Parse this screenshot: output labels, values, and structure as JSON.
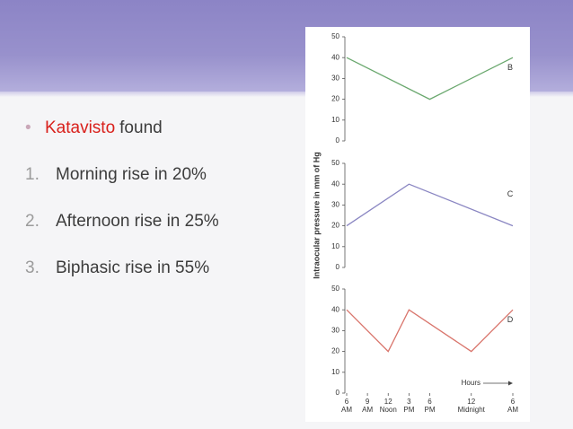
{
  "slide": {
    "bullet": {
      "marker": "•",
      "highlight": "Katavisto",
      "text": "found"
    },
    "items": [
      {
        "number": "1.",
        "text": "Morning rise in 20%"
      },
      {
        "number": "2.",
        "text": "Afternoon rise in 25%"
      },
      {
        "number": "3.",
        "text": "Biphasic rise in 55%"
      }
    ]
  },
  "chart_data": [
    {
      "type": "line",
      "label": "B",
      "color": "#6aa86e",
      "x": [
        6,
        18,
        30
      ],
      "values": [
        40,
        20,
        40
      ],
      "ylim": [
        0,
        50
      ],
      "yticks": [
        0,
        10,
        20,
        30,
        40,
        50
      ],
      "xlim": [
        6,
        30
      ]
    },
    {
      "type": "line",
      "label": "C",
      "color": "#8a86c2",
      "x": [
        6,
        15,
        30
      ],
      "values": [
        20,
        40,
        20
      ],
      "ylim": [
        0,
        50
      ],
      "yticks": [
        0,
        10,
        20,
        30,
        40,
        50
      ],
      "xlim": [
        6,
        30
      ],
      "ylabel": "Intraocular pressure in mm of Hg"
    },
    {
      "type": "line",
      "label": "D",
      "color": "#d9756c",
      "x": [
        6,
        12,
        15,
        24,
        30
      ],
      "values": [
        40,
        20,
        40,
        20,
        40
      ],
      "ylim": [
        0,
        50
      ],
      "yticks": [
        0,
        10,
        20,
        30,
        40,
        50
      ],
      "xlim": [
        6,
        30
      ],
      "xlabel": "Hours",
      "xticks": [
        {
          "value": 6,
          "label": [
            "6",
            "AM"
          ]
        },
        {
          "value": 9,
          "label": [
            "9",
            "AM"
          ]
        },
        {
          "value": 12,
          "label": [
            "12",
            "Noon"
          ]
        },
        {
          "value": 15,
          "label": [
            "3",
            "PM"
          ]
        },
        {
          "value": 18,
          "label": [
            "6",
            "PM"
          ]
        },
        {
          "value": 24,
          "label": [
            "12",
            "Midnight"
          ]
        },
        {
          "value": 30,
          "label": [
            "6",
            "AM"
          ]
        }
      ]
    }
  ]
}
